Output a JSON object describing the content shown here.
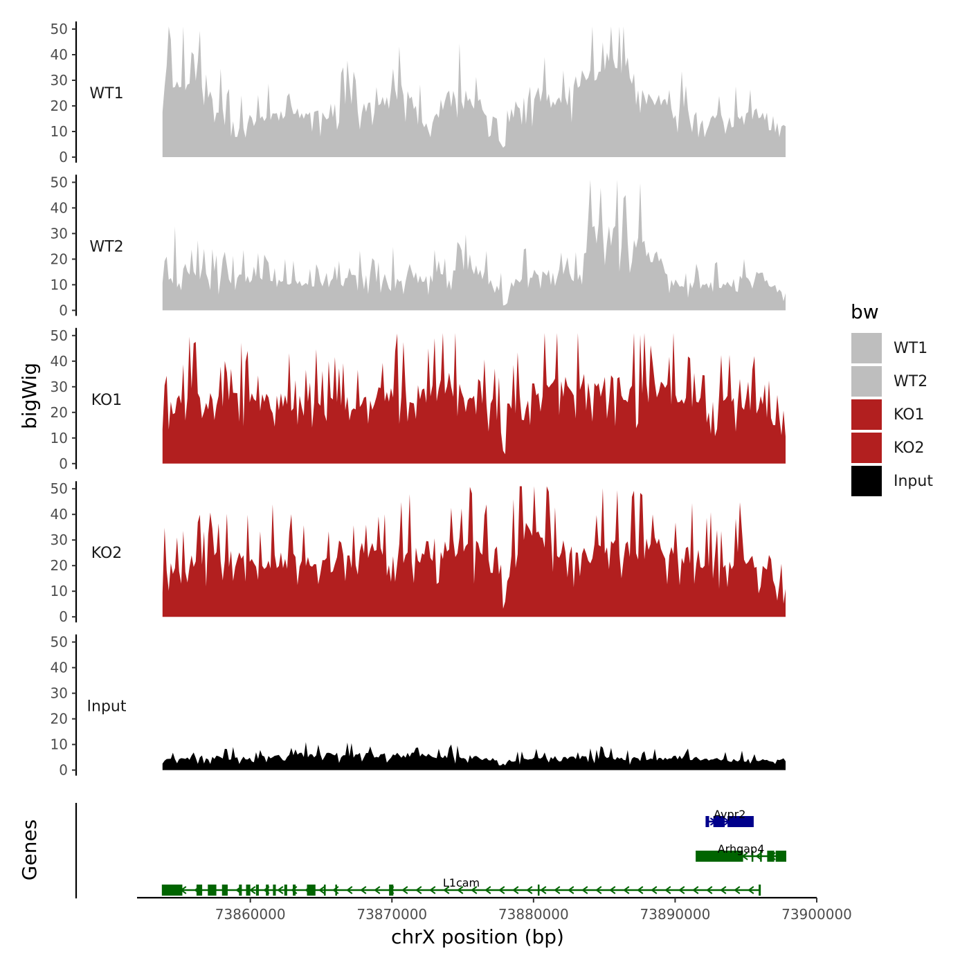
{
  "chart_data": {
    "type": "area",
    "y_axis_title": "bigWig",
    "x_axis_title": "chrX position (bp)",
    "genes_axis_title": "Genes",
    "xlim": [
      73852000,
      73900000
    ],
    "data_range": [
      73853800,
      73897800
    ],
    "ylim": [
      0,
      52
    ],
    "y_ticks": [
      "0",
      "10",
      "20",
      "30",
      "40",
      "50"
    ],
    "x_ticks": [
      {
        "value": 73860000,
        "label": "73860000"
      },
      {
        "value": 73870000,
        "label": "73870000"
      },
      {
        "value": 73880000,
        "label": "73880000"
      },
      {
        "value": 73890000,
        "label": "73890000"
      },
      {
        "value": 73900000,
        "label": "73900000"
      }
    ],
    "legend": {
      "title": "bw",
      "items": [
        {
          "label": "WT1",
          "color": "#bebebe"
        },
        {
          "label": "WT2",
          "color": "#bebebe"
        },
        {
          "label": "KO1",
          "color": "#b21f1f"
        },
        {
          "label": "KO2",
          "color": "#b21f1f"
        },
        {
          "label": "Input",
          "color": "#000000"
        }
      ]
    },
    "tracks": [
      {
        "name": "WT1",
        "color": "#bebebe",
        "seed": 11,
        "profile": [
          [
            73853800,
            34
          ],
          [
            73855000,
            28
          ],
          [
            73856000,
            38
          ],
          [
            73857500,
            22
          ],
          [
            73859000,
            13
          ],
          [
            73861000,
            16
          ],
          [
            73863000,
            18
          ],
          [
            73865000,
            17
          ],
          [
            73867000,
            21
          ],
          [
            73869000,
            20
          ],
          [
            73871000,
            26
          ],
          [
            73872500,
            12
          ],
          [
            73874000,
            24
          ],
          [
            73876000,
            22
          ],
          [
            73877600,
            12
          ],
          [
            73877900,
            1
          ],
          [
            73878400,
            18
          ],
          [
            73880000,
            26
          ],
          [
            73881500,
            20
          ],
          [
            73883000,
            28
          ],
          [
            73884500,
            38
          ],
          [
            73886000,
            42
          ],
          [
            73887000,
            32
          ],
          [
            73888000,
            24
          ],
          [
            73890000,
            18
          ],
          [
            73892000,
            15
          ],
          [
            73894000,
            14
          ],
          [
            73896000,
            17
          ],
          [
            73897800,
            13
          ]
        ]
      },
      {
        "name": "WT2",
        "color": "#bebebe",
        "seed": 23,
        "profile": [
          [
            73853800,
            20
          ],
          [
            73856000,
            15
          ],
          [
            73858000,
            13
          ],
          [
            73860000,
            12
          ],
          [
            73862000,
            11
          ],
          [
            73864000,
            10
          ],
          [
            73866000,
            11
          ],
          [
            73868000,
            13
          ],
          [
            73870000,
            14
          ],
          [
            73872000,
            13
          ],
          [
            73874000,
            14
          ],
          [
            73876000,
            16
          ],
          [
            73877700,
            8
          ],
          [
            73877900,
            0.5
          ],
          [
            73878400,
            11
          ],
          [
            73880000,
            14
          ],
          [
            73882000,
            16
          ],
          [
            73883500,
            12
          ],
          [
            73884000,
            32
          ],
          [
            73885500,
            30
          ],
          [
            73887000,
            28
          ],
          [
            73888500,
            22
          ],
          [
            73890000,
            11
          ],
          [
            73892000,
            10
          ],
          [
            73894000,
            11
          ],
          [
            73896000,
            14
          ],
          [
            73897800,
            6
          ]
        ]
      },
      {
        "name": "KO1",
        "color": "#b21f1f",
        "seed": 37,
        "profile": [
          [
            73853800,
            22
          ],
          [
            73856000,
            26
          ],
          [
            73858000,
            24
          ],
          [
            73860000,
            25
          ],
          [
            73862000,
            24
          ],
          [
            73864000,
            23
          ],
          [
            73866000,
            24
          ],
          [
            73868000,
            25
          ],
          [
            73870000,
            27
          ],
          [
            73872000,
            29
          ],
          [
            73874000,
            31
          ],
          [
            73876000,
            30
          ],
          [
            73877700,
            18
          ],
          [
            73877900,
            1
          ],
          [
            73878300,
            22
          ],
          [
            73880000,
            29
          ],
          [
            73882000,
            30
          ],
          [
            73884000,
            31
          ],
          [
            73886000,
            30
          ],
          [
            73888000,
            29
          ],
          [
            73890000,
            28
          ],
          [
            73892000,
            24
          ],
          [
            73894000,
            23
          ],
          [
            73896000,
            24
          ],
          [
            73897200,
            14
          ],
          [
            73897800,
            10
          ]
        ]
      },
      {
        "name": "KO2",
        "color": "#b21f1f",
        "seed": 53,
        "profile": [
          [
            73853800,
            20
          ],
          [
            73856000,
            22
          ],
          [
            73858000,
            23
          ],
          [
            73860000,
            22
          ],
          [
            73862000,
            23
          ],
          [
            73864000,
            21
          ],
          [
            73866000,
            20
          ],
          [
            73868000,
            26
          ],
          [
            73870000,
            25
          ],
          [
            73872000,
            26
          ],
          [
            73874000,
            28
          ],
          [
            73876000,
            28
          ],
          [
            73877600,
            16
          ],
          [
            73877900,
            1
          ],
          [
            73878300,
            26
          ],
          [
            73879500,
            33
          ],
          [
            73881000,
            29
          ],
          [
            73883000,
            24
          ],
          [
            73885000,
            27
          ],
          [
            73887000,
            28
          ],
          [
            73889000,
            27
          ],
          [
            73891000,
            24
          ],
          [
            73893000,
            23
          ],
          [
            73895000,
            23
          ],
          [
            73897000,
            14
          ],
          [
            73897800,
            10
          ]
        ]
      },
      {
        "name": "Input",
        "color": "#000000",
        "seed": 71,
        "profile": [
          [
            73853800,
            4
          ],
          [
            73856000,
            5
          ],
          [
            73860000,
            5
          ],
          [
            73864000,
            6
          ],
          [
            73868000,
            6
          ],
          [
            73872000,
            6
          ],
          [
            73876000,
            5
          ],
          [
            73877600,
            4
          ],
          [
            73877900,
            1
          ],
          [
            73878300,
            4
          ],
          [
            73882000,
            5
          ],
          [
            73886000,
            5
          ],
          [
            73888000,
            4
          ],
          [
            73890000,
            5
          ],
          [
            73894000,
            4
          ],
          [
            73897800,
            4
          ]
        ]
      }
    ],
    "genes": [
      {
        "name": "Avpr2",
        "color": "#00008b",
        "start": 73892200,
        "end": 73895500,
        "strand": "+",
        "exons": [
          [
            73892200,
            73892400
          ],
          [
            73892700,
            73893500
          ],
          [
            73893700,
            73895500
          ]
        ]
      },
      {
        "name": "Arhgap4",
        "color": "#006400",
        "start": 73891500,
        "end": 73897800,
        "strand": "-",
        "exons": [
          [
            73891500,
            73894800
          ],
          [
            73895400,
            73895500
          ],
          [
            73896000,
            73896100
          ],
          [
            73896500,
            73897000
          ],
          [
            73897100,
            73897800
          ]
        ]
      },
      {
        "name": "L1cam",
        "color": "#006400",
        "start": 73853800,
        "end": 73896000,
        "strand": "-",
        "exons": [
          [
            73853800,
            73855200
          ],
          [
            73856200,
            73856600
          ],
          [
            73857000,
            73857600
          ],
          [
            73858000,
            73858400
          ],
          [
            73859200,
            73859400
          ],
          [
            73859700,
            73860000
          ],
          [
            73860400,
            73860600
          ],
          [
            73861100,
            73861300
          ],
          [
            73861600,
            73861800
          ],
          [
            73862400,
            73862600
          ],
          [
            73863000,
            73863200
          ],
          [
            73864000,
            73864600
          ],
          [
            73865200,
            73865300
          ],
          [
            73866000,
            73866100
          ],
          [
            73869800,
            73870100
          ],
          [
            73880300,
            73880400
          ],
          [
            73895900,
            73896000
          ]
        ]
      }
    ]
  }
}
